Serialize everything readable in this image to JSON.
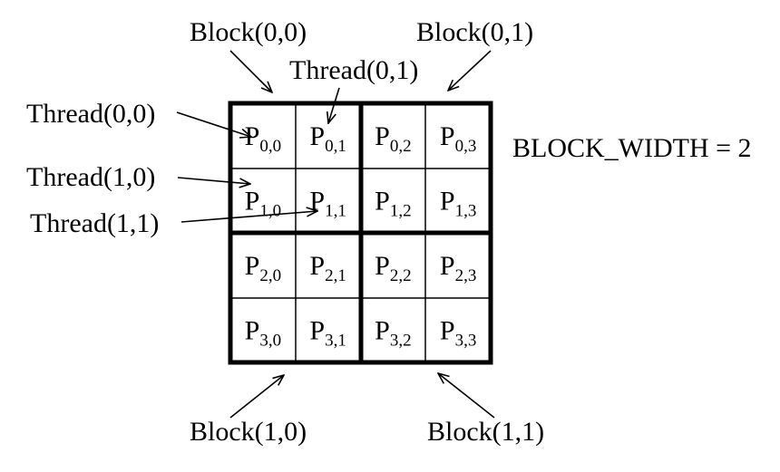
{
  "blocks": [
    {
      "label": "Block(0,0)"
    },
    {
      "label": "Block(0,1)"
    },
    {
      "label": "Block(1,0)"
    },
    {
      "label": "Block(1,1)"
    }
  ],
  "threads": [
    {
      "label": "Thread(0,0)"
    },
    {
      "label": "Thread(0,1)"
    },
    {
      "label": "Thread(1,0)"
    },
    {
      "label": "Thread(1,1)"
    }
  ],
  "block_width_label": "BLOCK_WIDTH = 2",
  "matrix": {
    "symbol": "P",
    "rows": [
      [
        "0,0",
        "0,1",
        "0,2",
        "0,3"
      ],
      [
        "1,0",
        "1,1",
        "1,2",
        "1,3"
      ],
      [
        "2,0",
        "2,1",
        "2,2",
        "2,3"
      ],
      [
        "3,0",
        "3,1",
        "3,2",
        "3,3"
      ]
    ]
  }
}
